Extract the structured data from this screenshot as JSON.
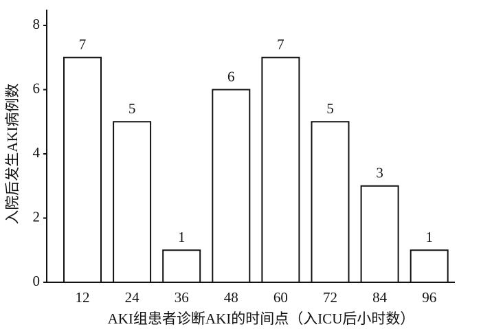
{
  "chart_data": {
    "type": "bar",
    "x_label": "AKI组患者诊断AKI的时间点（入ICU后小时数）",
    "y_label": "入院后发生AKI病例数",
    "categories": [
      "12",
      "24",
      "36",
      "48",
      "60",
      "72",
      "84",
      "96"
    ],
    "values": [
      7,
      5,
      1,
      6,
      7,
      5,
      3,
      1
    ],
    "color": "#ffffff",
    "ylim": [
      0,
      8
    ],
    "yticks": [
      0,
      2,
      4,
      6,
      8
    ],
    "grid": false
  }
}
